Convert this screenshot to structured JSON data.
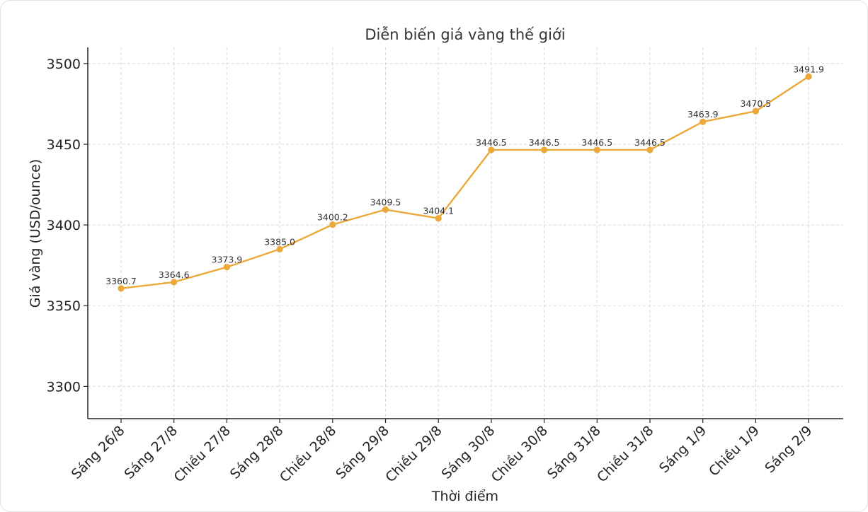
{
  "chart_data": {
    "type": "line",
    "title": "Diễn biến giá vàng thế giới",
    "xlabel": "Thời điểm",
    "ylabel": "Giá vàng (USD/ounce)",
    "categories": [
      "Sáng 26/8",
      "Sáng 27/8",
      "Chiều 27/8",
      "Sáng 28/8",
      "Chiều 28/8",
      "Sáng 29/8",
      "Chiều 29/8",
      "Sáng 30/8",
      "Chiều 30/8",
      "Sáng 31/8",
      "Chiều 31/8",
      "Sáng 1/9",
      "Chiều 1/9",
      "Sáng 2/9"
    ],
    "series": [
      {
        "values": [
          3360.7,
          3364.6,
          3373.9,
          3385.0,
          3400.2,
          3409.5,
          3404.1,
          3446.5,
          3446.5,
          3446.5,
          3446.5,
          3463.9,
          3470.5,
          3491.9
        ]
      }
    ],
    "data_labels": [
      "3360.7",
      "3364.6",
      "3373.9",
      "3385.0",
      "3400.2",
      "3409.5",
      "3404.1",
      "3446.5",
      "3446.5",
      "3446.5",
      "3446.5",
      "3463.9",
      "3470.5",
      "3491.9"
    ],
    "yticks": [
      3300,
      3350,
      3400,
      3450,
      3500
    ],
    "ylim": [
      3280,
      3510
    ],
    "grid": true,
    "line_color": "#EBA93A"
  }
}
